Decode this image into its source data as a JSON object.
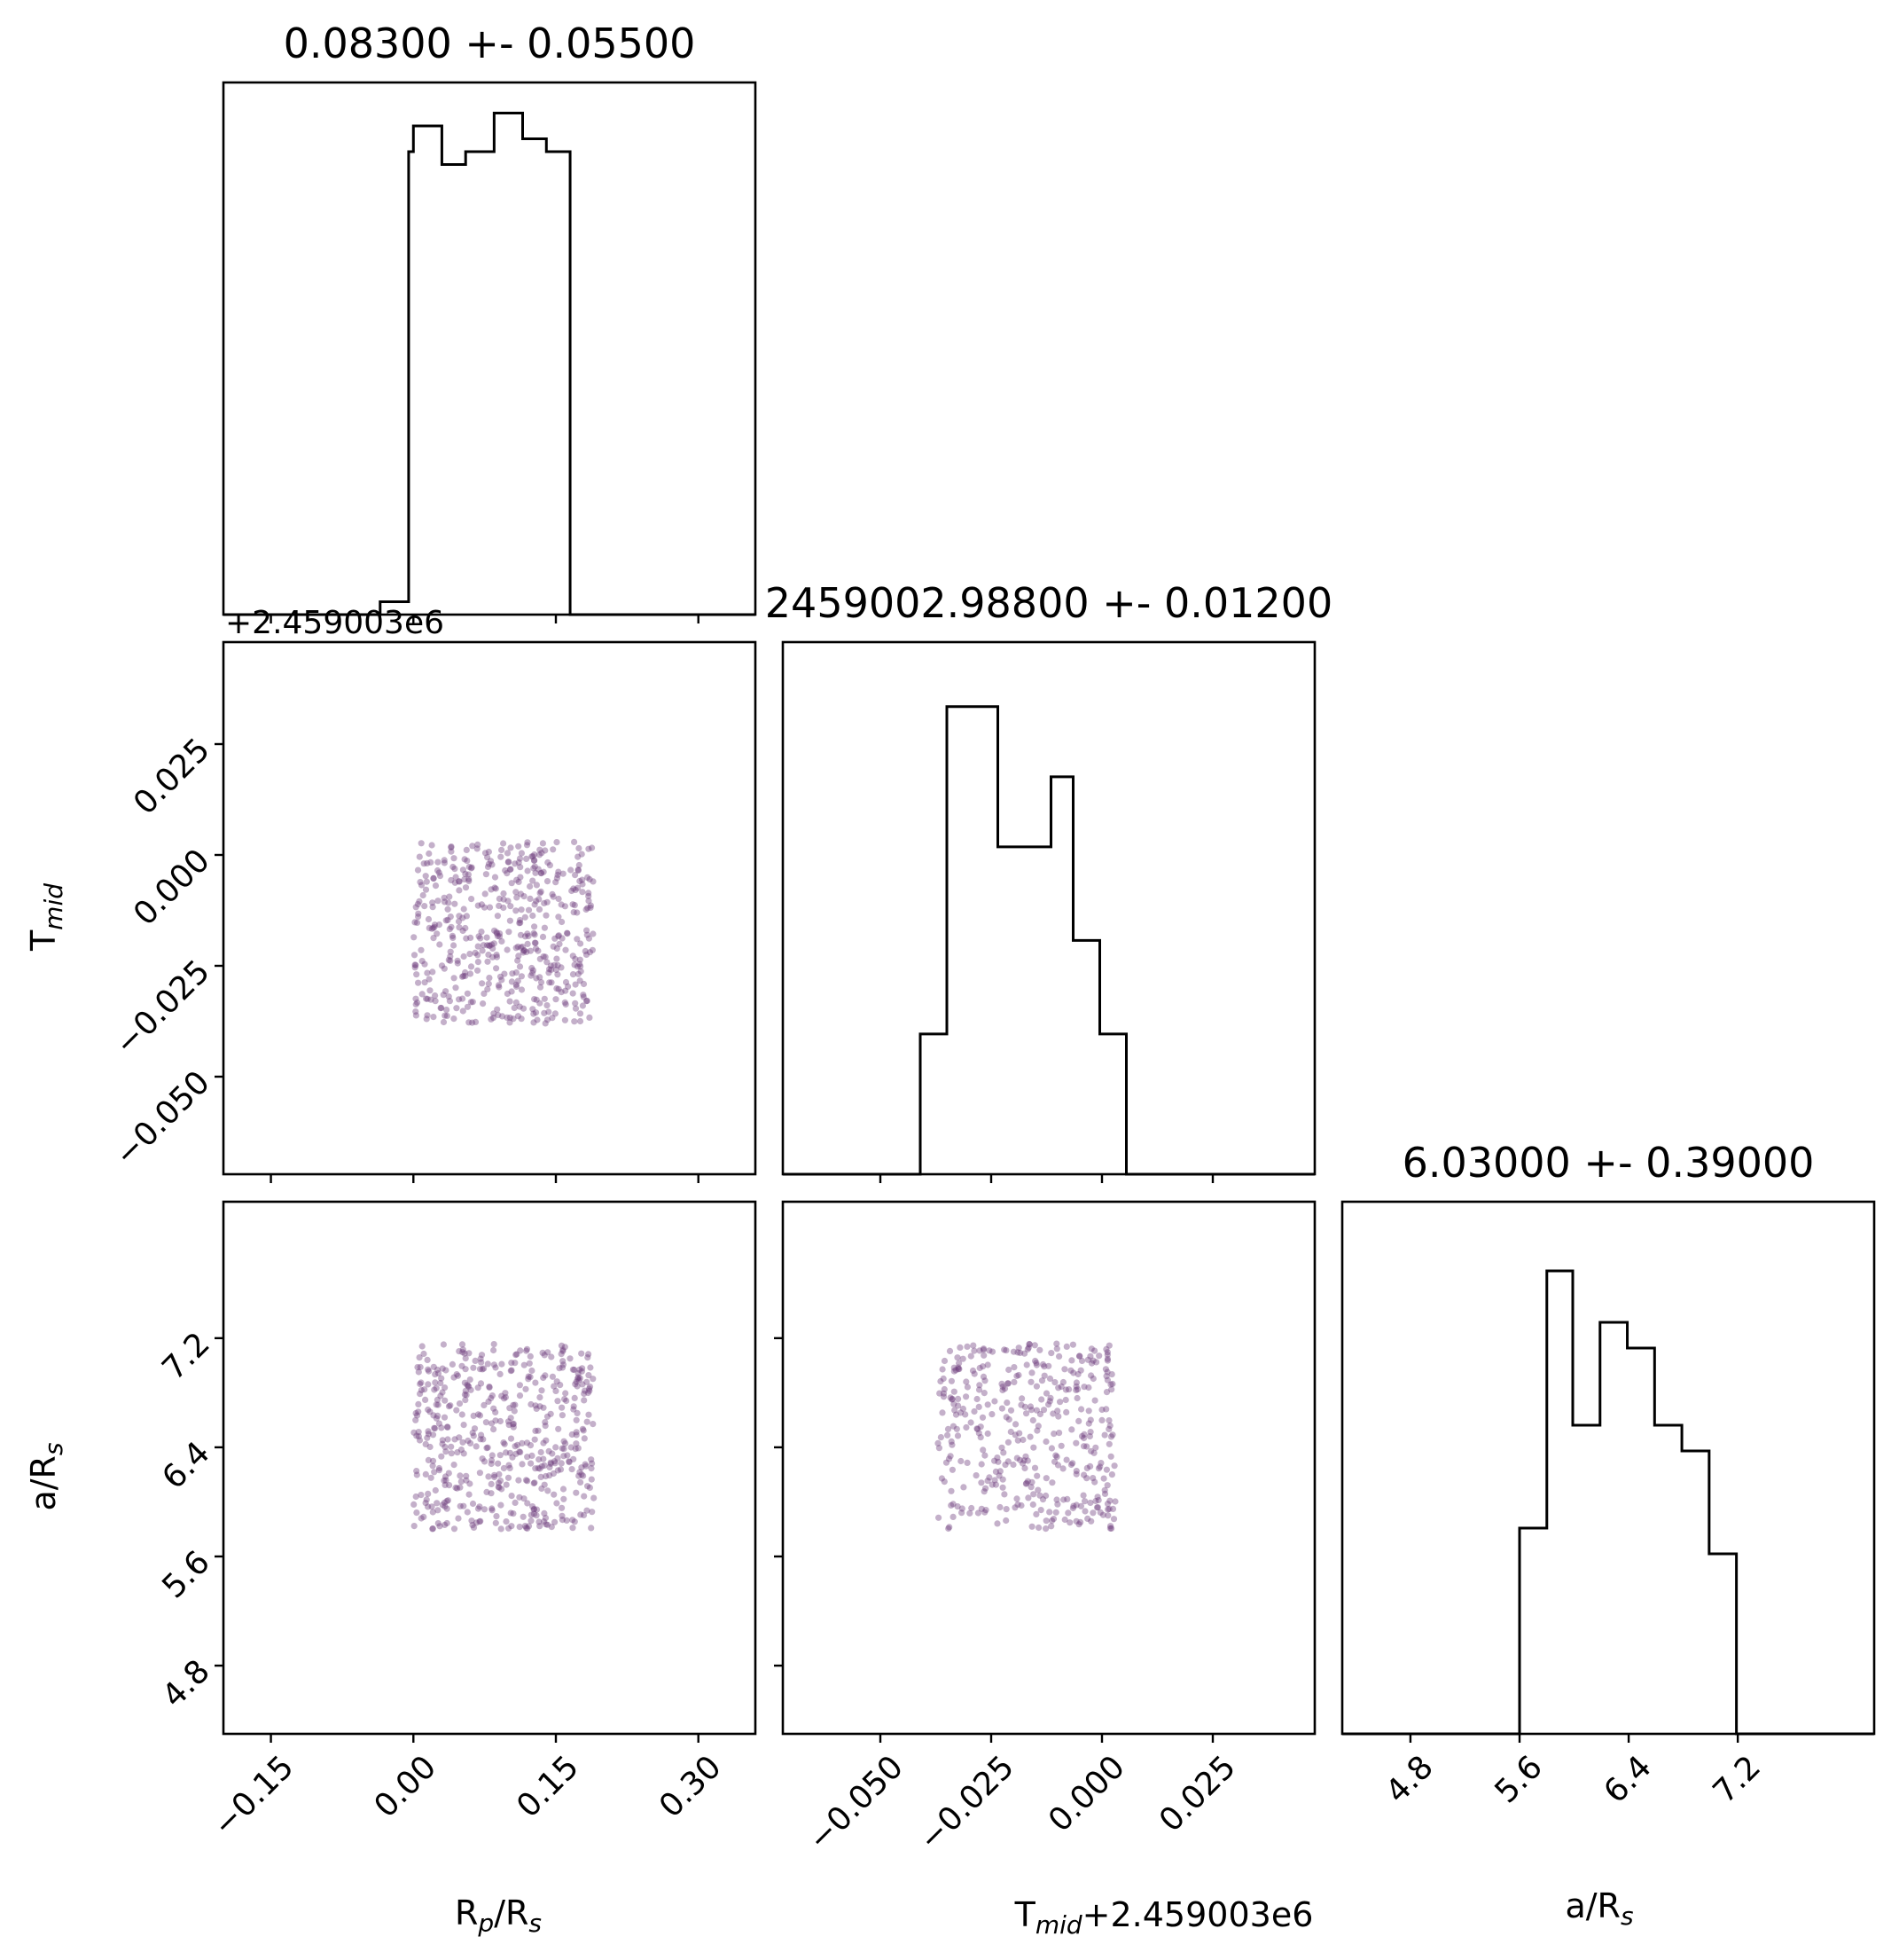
{
  "chart_data": {
    "type": "corner",
    "parameters": [
      {
        "key": "rprs",
        "label": "R",
        "label_sub": "p",
        "label_tail": "/R",
        "label_sub2": "s",
        "title": "0.08300 +- 0.05500",
        "range": [
          -0.2,
          0.36
        ],
        "ticks": [
          -0.15,
          0.0,
          0.15,
          0.3
        ],
        "tick_labels": [
          "−0.15",
          "0.00",
          "0.15",
          "0.30"
        ],
        "offset_text": ""
      },
      {
        "key": "tmid",
        "label": "T",
        "label_sub": "mid",
        "label_tail": "+2.459003e6",
        "label_sub2": "",
        "title": "2459002.98800 +- 0.01200",
        "range": [
          -0.072,
          0.048
        ],
        "ticks": [
          -0.05,
          -0.025,
          0.0,
          0.025
        ],
        "tick_labels": [
          "−0.050",
          "−0.025",
          "0.000",
          "0.025"
        ],
        "offset_text": "+2.459003e6"
      },
      {
        "key": "ars",
        "label": "a/R",
        "label_sub": "s",
        "label_tail": "",
        "label_sub2": "",
        "title": "6.03000 +- 0.39000",
        "range": [
          4.3,
          8.2
        ],
        "ticks": [
          4.8,
          5.6,
          6.4,
          7.2
        ],
        "tick_labels": [
          "4.8",
          "5.6",
          "6.4",
          "7.2"
        ],
        "offset_text": ""
      }
    ],
    "histograms": [
      {
        "param": "rprs",
        "bin_edges": [
          -0.035,
          -0.005,
          0.0,
          0.03,
          0.055,
          0.085,
          0.115,
          0.14,
          0.165,
          0.195
        ],
        "counts": [
          1,
          36,
          38,
          35,
          36,
          39,
          37,
          36,
          0
        ],
        "ymax": 40
      },
      {
        "param": "tmid",
        "bin_edges": [
          -0.041,
          -0.035,
          -0.0235,
          -0.0115,
          -0.0065,
          -0.0005,
          0.0055
        ],
        "counts": [
          6,
          20,
          14,
          17,
          10,
          6
        ],
        "ymax": 22
      },
      {
        "param": "ars",
        "bin_edges": [
          5.6,
          5.8,
          5.99,
          6.19,
          6.39,
          6.59,
          6.79,
          6.99,
          7.19
        ],
        "counts": [
          8,
          18,
          12,
          16,
          15,
          12,
          11,
          7
        ],
        "ymax": 20
      }
    ],
    "scatter": [
      {
        "x": "rprs",
        "y": "tmid",
        "n": 500,
        "x_range": [
          0.0,
          0.19
        ],
        "y_range": [
          -0.038,
          0.003
        ]
      },
      {
        "x": "rprs",
        "y": "ars",
        "n": 500,
        "x_range": [
          0.0,
          0.19
        ],
        "y_range": [
          5.8,
          7.16
        ]
      },
      {
        "x": "tmid",
        "y": "ars",
        "n": 400,
        "x_range": [
          -0.037,
          0.003
        ],
        "y_range": [
          5.8,
          7.16
        ]
      }
    ],
    "point_color": "#6b3a7a"
  }
}
